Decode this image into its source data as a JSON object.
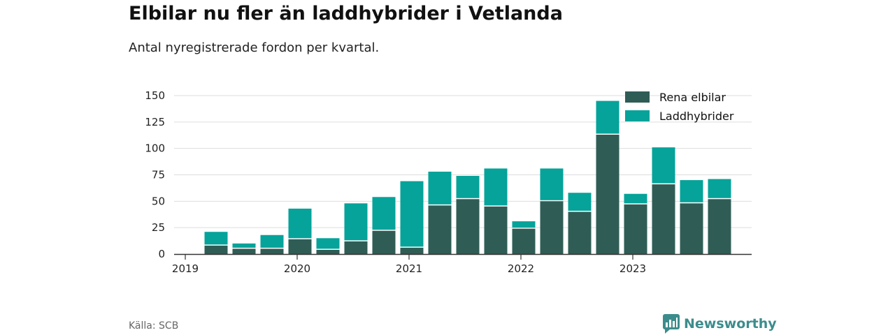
{
  "header": {
    "title": "Elbilar nu fler än laddhybrider i Vetlanda",
    "subtitle": "Antal nyregistrerade fordon per kvartal."
  },
  "footer": {
    "source": "Källa: SCB",
    "brand": "Newsworthy",
    "brand_icon": "bar-chart-badge-icon"
  },
  "colors": {
    "electric": "#2f5d56",
    "hybrid": "#05a39a",
    "grid": "#dddddd",
    "axis": "#333333",
    "brand": "#3d8c8c"
  },
  "chart_data": {
    "type": "bar",
    "stacked": true,
    "x_labels": [
      "2019",
      "2020",
      "2021",
      "2022",
      "2023"
    ],
    "categories": [
      "2019 Q2",
      "2019 Q3",
      "2019 Q4",
      "2020 Q1",
      "2020 Q2",
      "2020 Q3",
      "2020 Q4",
      "2021 Q1",
      "2021 Q2",
      "2021 Q3",
      "2021 Q4",
      "2022 Q1",
      "2022 Q2",
      "2022 Q3",
      "2022 Q4",
      "2023 Q1",
      "2023 Q2",
      "2023 Q3",
      "2023 Q4"
    ],
    "series": [
      {
        "name": "Rena elbilar",
        "values": [
          8,
          5,
          5,
          14,
          4,
          12,
          22,
          6,
          46,
          52,
          45,
          24,
          50,
          40,
          113,
          47,
          66,
          48,
          52
        ]
      },
      {
        "name": "Laddhybrider",
        "values": [
          13,
          5,
          13,
          29,
          11,
          36,
          32,
          63,
          32,
          22,
          36,
          7,
          31,
          18,
          32,
          10,
          35,
          22,
          19
        ]
      }
    ],
    "y_ticks": [
      0,
      25,
      50,
      75,
      100,
      125,
      150
    ],
    "ylim": [
      0,
      150
    ],
    "grid": true,
    "legend_position": "top-right",
    "xlabel": "",
    "ylabel": ""
  }
}
